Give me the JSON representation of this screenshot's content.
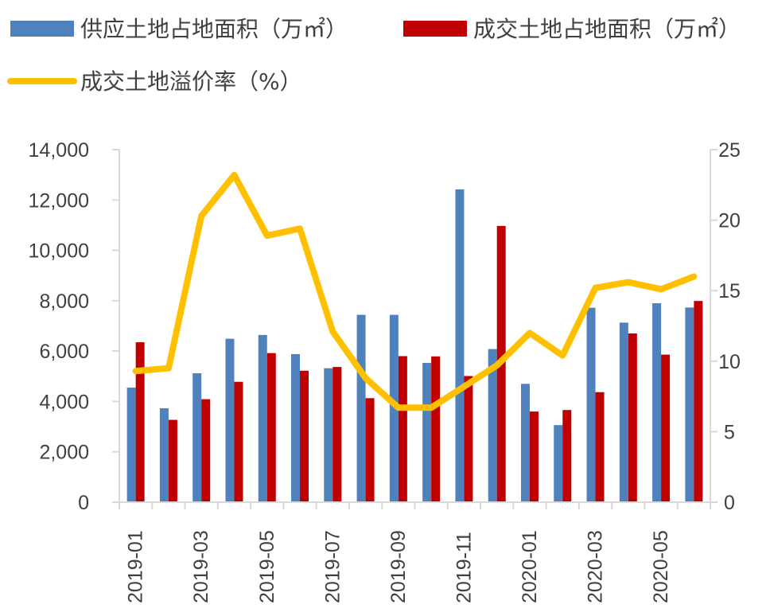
{
  "chart_data": {
    "type": "bar",
    "categories": [
      "2019-01",
      "2019-02",
      "2019-03",
      "2019-04",
      "2019-05",
      "2019-06",
      "2019-07",
      "2019-08",
      "2019-09",
      "2019-10",
      "2019-11",
      "2019-12",
      "2020-01",
      "2020-02",
      "2020-03",
      "2020-04",
      "2020-05",
      "2020-06"
    ],
    "x_tick_labels": [
      "2019-01",
      "2019-03",
      "2019-05",
      "2019-07",
      "2019-09",
      "2019-11",
      "2020-01",
      "2020-03",
      "2020-05"
    ],
    "series": [
      {
        "name": "供应土地占地面积（万㎡）",
        "type": "bar",
        "axis": "left",
        "color": "#4F81BD",
        "values": [
          4550,
          3730,
          5120,
          6490,
          6640,
          5880,
          5320,
          7440,
          7440,
          5530,
          12420,
          6080,
          4700,
          3060,
          7720,
          7130,
          7900,
          7730
        ]
      },
      {
        "name": "成交土地占地面积（万㎡）",
        "type": "bar",
        "axis": "left",
        "color": "#C00000",
        "values": [
          6350,
          3270,
          4090,
          4780,
          5920,
          5220,
          5370,
          4130,
          5800,
          5790,
          5010,
          10970,
          3600,
          3660,
          4370,
          6700,
          5860,
          7990
        ]
      },
      {
        "name": "成交土地溢价率（%）",
        "type": "line",
        "axis": "right",
        "color": "#FFC000",
        "values": [
          9.3,
          9.5,
          20.3,
          23.2,
          18.9,
          19.4,
          12.1,
          8.8,
          6.7,
          6.7,
          8.2,
          9.7,
          12.0,
          10.4,
          15.2,
          15.6,
          15.1,
          16.0
        ]
      }
    ],
    "y_left": {
      "min": 0,
      "max": 14000,
      "step": 2000,
      "ticks": [
        "0",
        "2,000",
        "4,000",
        "6,000",
        "8,000",
        "10,000",
        "12,000",
        "14,000"
      ]
    },
    "y_right": {
      "min": 0,
      "max": 25,
      "step": 5,
      "ticks": [
        "0",
        "5",
        "10",
        "15",
        "20",
        "25"
      ]
    },
    "legend_position": "top-left",
    "grid": false
  }
}
